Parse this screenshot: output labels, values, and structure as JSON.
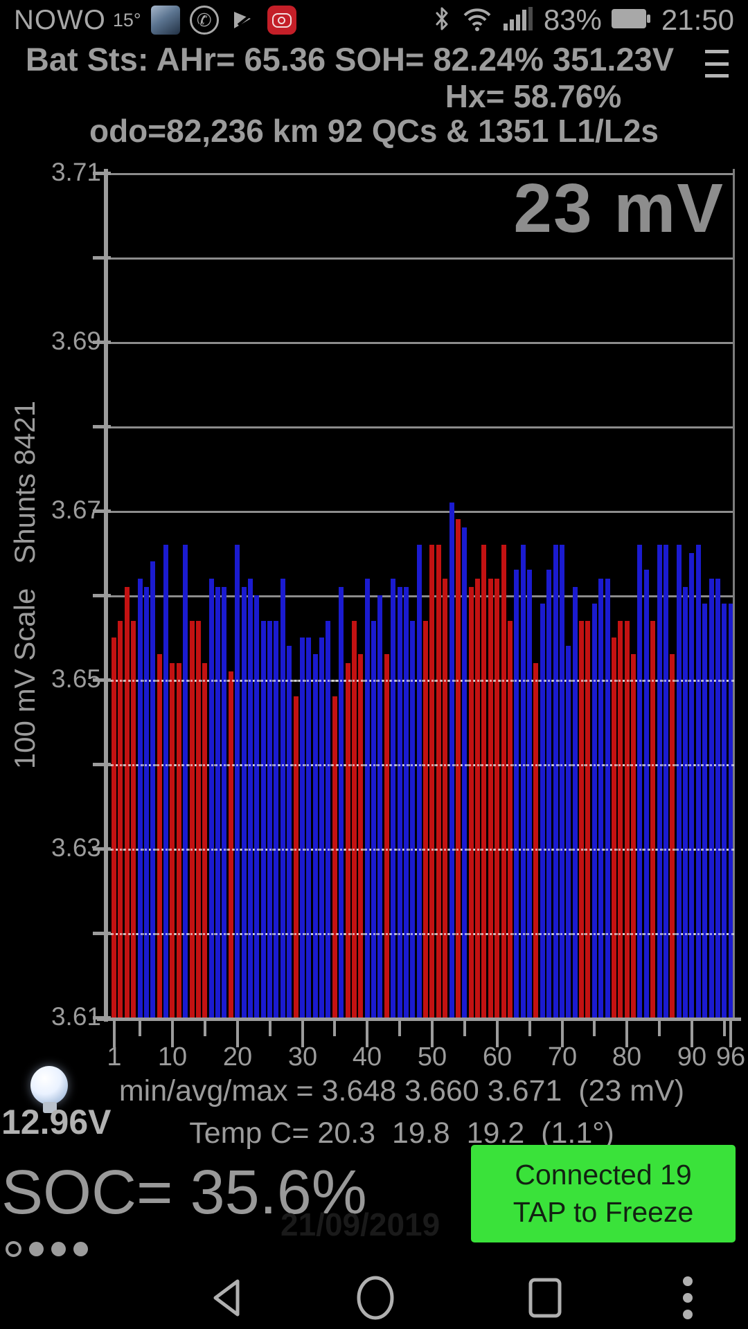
{
  "status_bar": {
    "carrier": "NOWO",
    "temperature": "15°",
    "whatsapp_glyph": "✆",
    "battery_pct": "83%",
    "time": "21:50"
  },
  "header": {
    "title": "Bat Sts: AHr= 65.36 SOH= 82.24% 351.23V",
    "hx": "Hx= 58.76%",
    "odo": "odo=82,236 km 92 QCs & 1351 L1/L2s"
  },
  "chart_data": {
    "type": "bar",
    "title": "23 mV",
    "ylabel": "100 mV Scale   Shunts 8421",
    "xlabel": "",
    "ylim": [
      3.61,
      3.71
    ],
    "ytick_step": 0.01,
    "ylabel_step": 0.02,
    "grid": true,
    "xtick_labels": [
      1,
      10,
      20,
      30,
      40,
      50,
      60,
      70,
      80,
      90,
      96
    ],
    "minor_xticks": [
      5,
      15,
      25,
      35,
      45,
      55,
      65,
      75,
      85,
      95
    ],
    "stats": {
      "min": 3.648,
      "avg": 3.66,
      "max": 3.671,
      "spread_mv": 23
    },
    "num_cells": 96,
    "values": [
      3.655,
      3.657,
      3.661,
      3.657,
      3.662,
      3.661,
      3.664,
      3.653,
      3.666,
      3.652,
      3.652,
      3.666,
      3.657,
      3.657,
      3.652,
      3.662,
      3.661,
      3.661,
      3.651,
      3.666,
      3.661,
      3.662,
      3.66,
      3.657,
      3.657,
      3.657,
      3.662,
      3.654,
      3.648,
      3.655,
      3.655,
      3.653,
      3.655,
      3.657,
      3.648,
      3.661,
      3.652,
      3.657,
      3.653,
      3.662,
      3.657,
      3.66,
      3.653,
      3.662,
      3.661,
      3.661,
      3.657,
      3.666,
      3.657,
      3.666,
      3.666,
      3.662,
      3.671,
      3.669,
      3.668,
      3.661,
      3.662,
      3.666,
      3.662,
      3.662,
      3.666,
      3.657,
      3.663,
      3.666,
      3.663,
      3.652,
      3.659,
      3.663,
      3.666,
      3.666,
      3.654,
      3.661,
      3.657,
      3.657,
      3.659,
      3.662,
      3.662,
      3.655,
      3.657,
      3.657,
      3.653,
      3.666,
      3.663,
      3.657,
      3.666,
      3.666,
      3.653,
      3.666,
      3.661,
      3.665,
      3.666,
      3.659,
      3.662,
      3.662,
      3.659,
      3.659
    ],
    "shunt_colors": "rrrrbbbrbrrbrrrbbbrbbbbbbbbbrbbbbbrbrrrbbbrbbbbbrrrrbrbrrrrrrrbbbrbbbbbbrrbbbrrrrbbrbbrbbbbbbbbb"
  },
  "footer": {
    "aux_voltage": "12.96V",
    "min_avg_max": "min/avg/max = 3.648 3.660 3.671  (23 mV)",
    "temp_line": "Temp C= 20.3  19.8  19.2  (1.1°)",
    "soc": "SOC= 35.6%",
    "faint_date": "21/09/2019",
    "connect_button": {
      "line1": "Connected 19",
      "line2": "TAP to Freeze"
    }
  },
  "colors": {
    "bar_red": "#c31212",
    "bar_blue": "#1b1bd0",
    "button_green": "#3ae23a",
    "grid": "#8c8c8c",
    "axis": "#9c9c9c",
    "text": "#9c9c9c"
  }
}
